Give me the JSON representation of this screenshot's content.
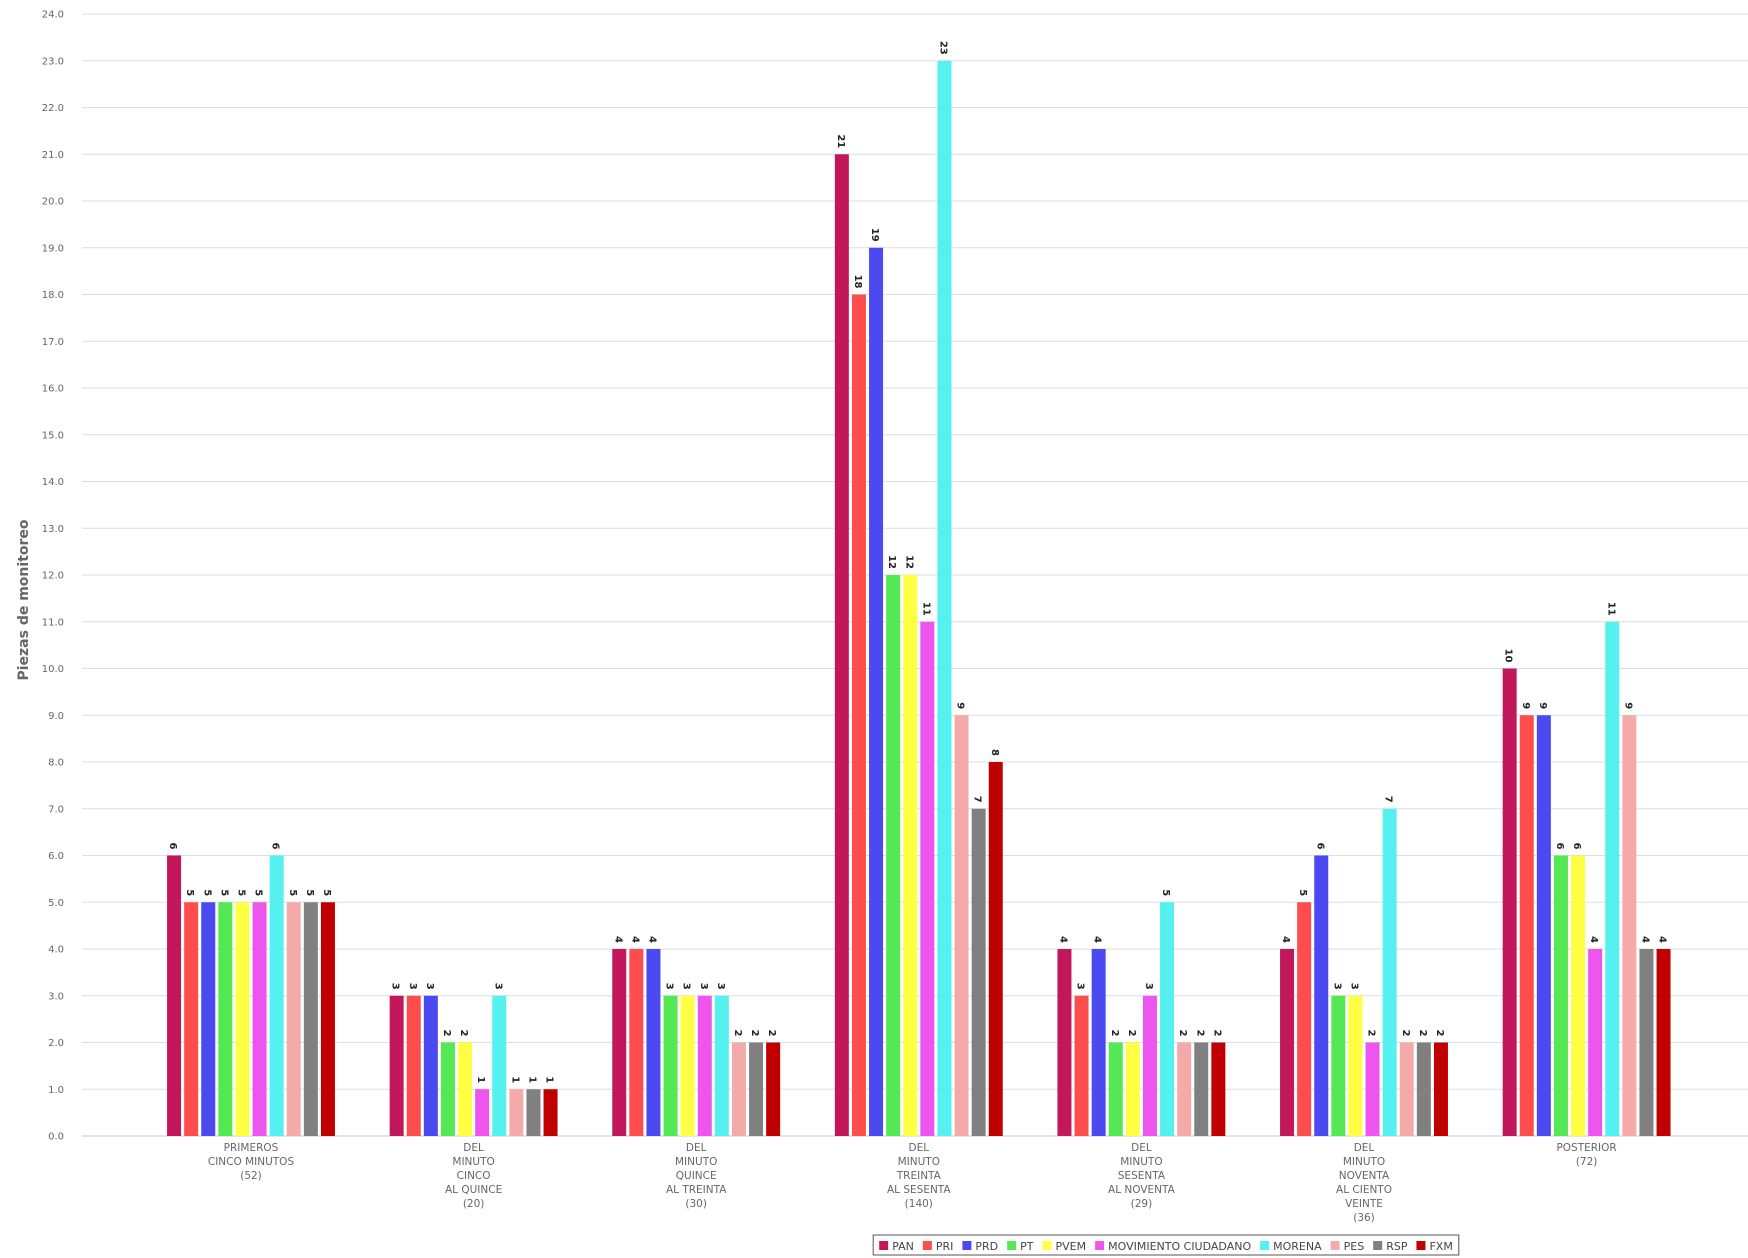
{
  "chart_data": {
    "type": "bar",
    "title": "",
    "xlabel": "",
    "ylabel": "Piezas de monitoreo",
    "ylim": [
      0,
      24
    ],
    "ytick_step": 1,
    "grid": true,
    "legend_position": "bottom",
    "categories": [
      [
        "PRIMEROS",
        "CINCO MINUTOS",
        "(52)"
      ],
      [
        "DEL",
        "MINUTO",
        "CINCO",
        "AL QUINCE",
        "(20)"
      ],
      [
        "DEL",
        "MINUTO",
        "QUINCE",
        "AL TREINTA",
        "(30)"
      ],
      [
        "DEL",
        "MINUTO",
        "TREINTA",
        "AL SESENTA",
        "(140)"
      ],
      [
        "DEL",
        "MINUTO",
        "SESENTA",
        "AL NOVENTA",
        "(29)"
      ],
      [
        "DEL",
        "MINUTO",
        "NOVENTA",
        "AL CIENTO",
        "VEINTE",
        "(36)"
      ],
      [
        "POSTERIOR",
        "(72)"
      ]
    ],
    "series": [
      {
        "name": "PAN",
        "color": "#c2185b",
        "values": [
          6,
          3,
          4,
          21,
          4,
          4,
          10
        ]
      },
      {
        "name": "PRI",
        "color": "#ff4d4d",
        "values": [
          5,
          3,
          4,
          18,
          3,
          5,
          9
        ]
      },
      {
        "name": "PRD",
        "color": "#4a4af0",
        "values": [
          5,
          3,
          4,
          19,
          4,
          6,
          9
        ]
      },
      {
        "name": "PT",
        "color": "#55e855",
        "values": [
          5,
          2,
          3,
          12,
          2,
          3,
          6
        ]
      },
      {
        "name": "PVEM",
        "color": "#ffff44",
        "values": [
          5,
          2,
          3,
          12,
          2,
          3,
          6
        ]
      },
      {
        "name": "MOVIMIENTO CIUDADANO",
        "color": "#ee55ee",
        "values": [
          5,
          1,
          3,
          11,
          3,
          2,
          4
        ]
      },
      {
        "name": "MORENA",
        "color": "#55f0f0",
        "values": [
          6,
          3,
          3,
          23,
          5,
          7,
          11
        ]
      },
      {
        "name": "PES",
        "color": "#f5aaaa",
        "values": [
          5,
          1,
          2,
          9,
          2,
          2,
          9
        ]
      },
      {
        "name": "RSP",
        "color": "#808080",
        "values": [
          5,
          1,
          2,
          7,
          2,
          2,
          4
        ]
      },
      {
        "name": "FXM",
        "color": "#c00000",
        "values": [
          5,
          1,
          2,
          8,
          2,
          2,
          4
        ]
      }
    ]
  }
}
